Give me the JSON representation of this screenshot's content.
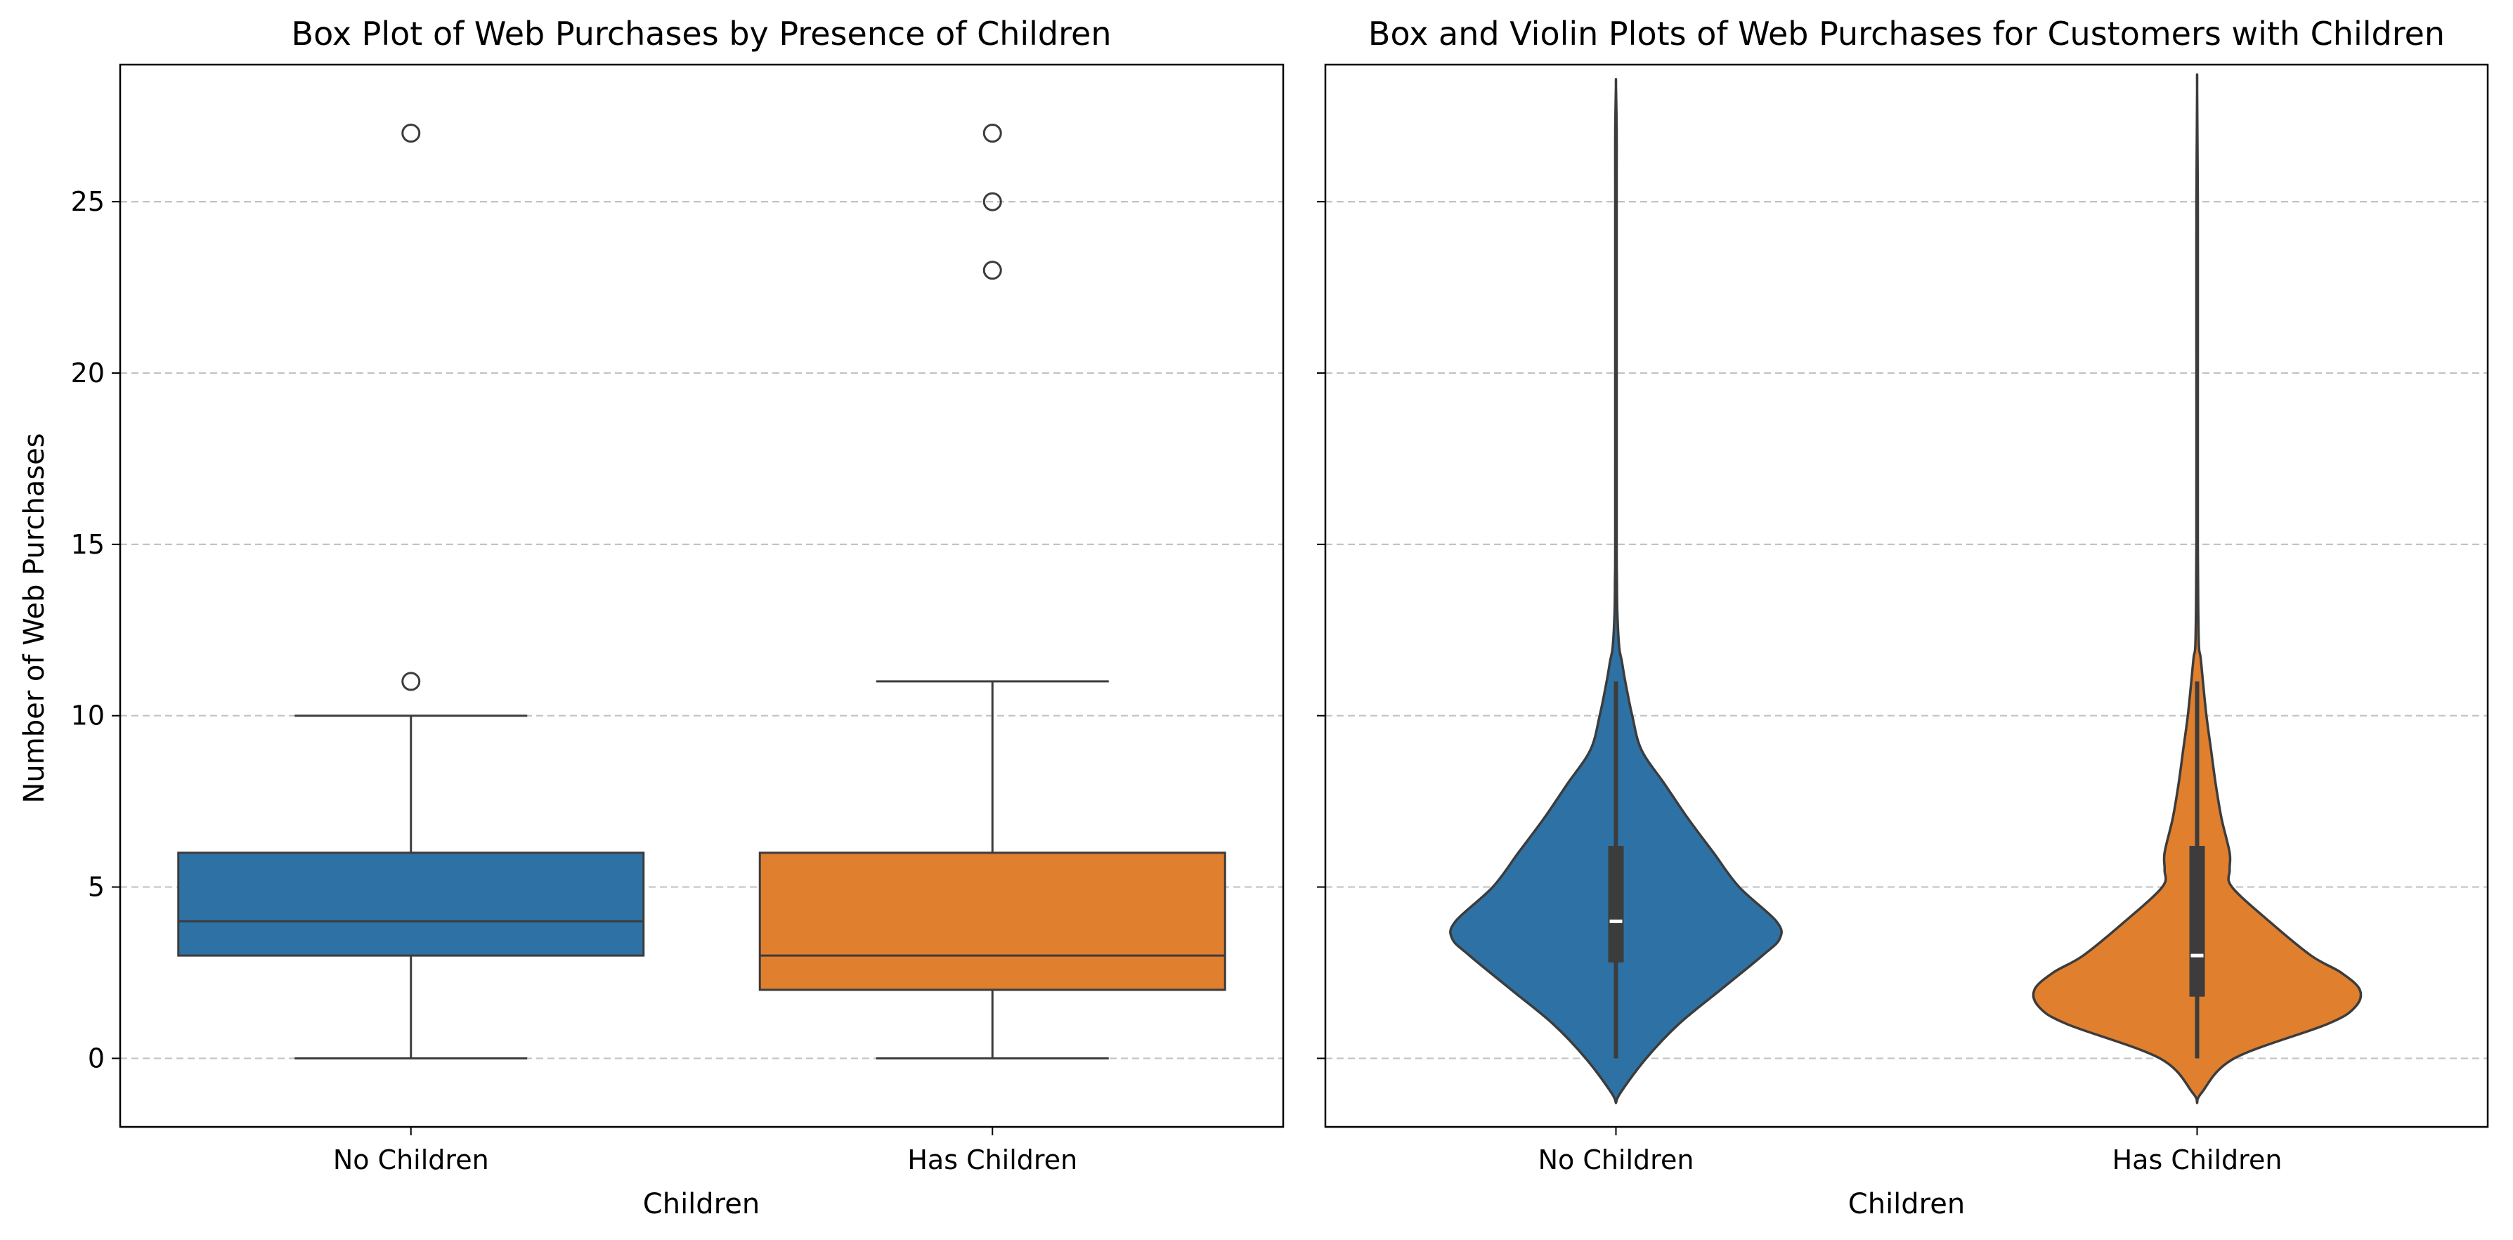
{
  "chart_data": [
    {
      "type": "box",
      "title": "Box Plot of Web Purchases by Presence of Children",
      "xlabel": "Children",
      "ylabel": "Number of Web Purchases",
      "ylim": [
        -2,
        29
      ],
      "yticks": [
        0,
        5,
        10,
        15,
        20,
        25
      ],
      "grid": "y dashed",
      "categories": [
        "No Children",
        "Has Children"
      ],
      "series": [
        {
          "name": "No Children",
          "color": "#2e72a5",
          "whisker_low": 0,
          "q1": 3,
          "median": 4,
          "q3": 6,
          "whisker_high": 10,
          "outliers": [
            11,
            27
          ]
        },
        {
          "name": "Has Children",
          "color": "#e07f2e",
          "whisker_low": 0,
          "q1": 2,
          "median": 3,
          "q3": 6,
          "whisker_high": 11,
          "outliers": [
            23,
            25,
            27
          ]
        }
      ]
    },
    {
      "type": "violin",
      "title": "Box and Violin Plots of Web Purchases for Customers with Children",
      "xlabel": "Children",
      "ylabel": "",
      "ylim": [
        -2,
        29
      ],
      "yticks": [
        0,
        5,
        10,
        15,
        20,
        25
      ],
      "grid": "y dashed",
      "categories": [
        "No Children",
        "Has Children"
      ],
      "series": [
        {
          "name": "No Children",
          "color": "#2e72a5",
          "range": [
            0,
            27
          ],
          "q1": 2.8,
          "median": 4,
          "q3": 6.2,
          "density_y": [
            -1.3,
            -1,
            0,
            1,
            2,
            3,
            3.5,
            4,
            5,
            6,
            7,
            8,
            9,
            10,
            11,
            11.6,
            12,
            13,
            14,
            15,
            20,
            25,
            27,
            28.4
          ],
          "density_w": [
            0,
            0.02,
            0.13,
            0.27,
            0.45,
            0.63,
            0.705,
            0.69,
            0.53,
            0.42,
            0.31,
            0.21,
            0.11,
            0.07,
            0.04,
            0.025,
            0.014,
            0.006,
            0.004,
            0.003,
            0.003,
            0.003,
            0.003,
            0
          ]
        },
        {
          "name": "Has Children",
          "color": "#e07f2e",
          "range": [
            0,
            27
          ],
          "q1": 1.8,
          "median": 3,
          "q3": 6.2,
          "density_y": [
            -1.3,
            -1,
            0,
            1,
            1.5,
            2,
            2.5,
            3,
            4,
            5,
            5.5,
            6,
            7,
            8,
            9,
            10,
            11,
            11.7,
            12,
            13,
            15,
            20,
            25,
            28.3
          ],
          "density_w": [
            0,
            0.02,
            0.16,
            0.56,
            0.68,
            0.7,
            0.62,
            0.49,
            0.31,
            0.15,
            0.14,
            0.14,
            0.105,
            0.08,
            0.06,
            0.04,
            0.025,
            0.015,
            0.008,
            0.005,
            0.003,
            0.003,
            0.003,
            0
          ]
        }
      ]
    }
  ]
}
